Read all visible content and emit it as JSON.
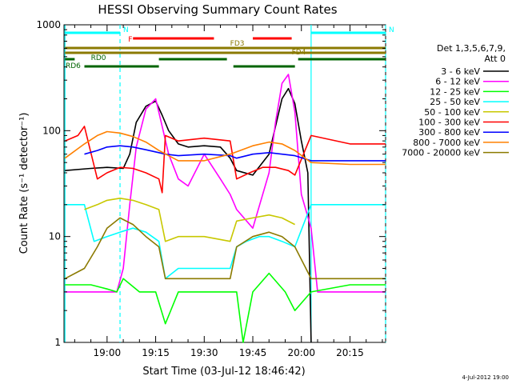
{
  "chart_data": {
    "type": "line",
    "title": "HESSI Observing Summary Count Rates",
    "xlabel": "Start Time (03-Jul-12 18:46:42)",
    "ylabel": "Count Rate (s⁻¹ detector⁻¹)",
    "yscale": "log",
    "ylim": [
      1,
      1000
    ],
    "xlim": [
      "18:46:42",
      "20:26:00"
    ],
    "x_ticks": [
      "19:00",
      "19:15",
      "19:30",
      "19:45",
      "20:00",
      "20:15"
    ],
    "y_ticks": [
      "1",
      "10",
      "100",
      "1000"
    ],
    "grid": false,
    "legend_position": "right",
    "legend_header": [
      "Det 1,3,5,6,7,9,",
      "Att 0"
    ],
    "footer_date": "4-Jul-2012 19:00",
    "series": [
      {
        "name": "3 - 6 keV",
        "color": "#000000",
        "x": [
          "18:47",
          "18:55",
          "19:00",
          "19:05",
          "19:07",
          "19:09",
          "19:12",
          "19:15",
          "19:17",
          "19:19",
          "19:22",
          "19:25",
          "19:30",
          "19:35",
          "19:38",
          "19:40",
          "19:45",
          "19:50",
          "19:52",
          "19:54",
          "19:56",
          "19:58",
          "20:00",
          "20:02",
          "20:03"
        ],
        "values": [
          42,
          44,
          45,
          44,
          60,
          120,
          170,
          190,
          140,
          100,
          75,
          70,
          72,
          70,
          55,
          42,
          38,
          60,
          110,
          200,
          250,
          180,
          80,
          40,
          1
        ]
      },
      {
        "name": "6 - 12 keV",
        "color": "#ff00ff",
        "x": [
          "18:47",
          "18:55",
          "19:00",
          "19:03",
          "19:05",
          "19:07",
          "19:09",
          "19:12",
          "19:15",
          "19:17",
          "19:19",
          "19:22",
          "19:25",
          "19:30",
          "19:35",
          "19:38",
          "19:40",
          "19:45",
          "19:50",
          "19:52",
          "19:54",
          "19:56",
          "19:58",
          "20:00",
          "20:03",
          "20:05",
          "20:15",
          "20:26"
        ],
        "values": [
          3,
          3,
          3,
          3,
          5,
          20,
          70,
          160,
          200,
          110,
          60,
          35,
          30,
          60,
          35,
          25,
          18,
          12,
          40,
          120,
          280,
          340,
          150,
          25,
          12,
          3,
          3,
          3
        ]
      },
      {
        "name": "12 - 25 keV",
        "color": "#00ff00",
        "x": [
          "18:47",
          "18:55",
          "19:00",
          "19:03",
          "19:05",
          "19:10",
          "19:15",
          "19:18",
          "19:22",
          "19:30",
          "19:40",
          "19:42",
          "19:45",
          "19:50",
          "19:55",
          "19:58",
          "20:03",
          "20:15",
          "20:26"
        ],
        "values": [
          3.5,
          3.5,
          3.2,
          3,
          4,
          3,
          3,
          1.5,
          3,
          3,
          3,
          1,
          3,
          4.5,
          3,
          2,
          3,
          3.5,
          3.5
        ]
      },
      {
        "name": "25 - 50 keV",
        "color": "#00ffff",
        "x": [
          "18:47",
          "18:53",
          "18:56",
          "19:00",
          "19:04",
          "19:08",
          "19:12",
          "19:16",
          "19:18",
          "19:22",
          "19:30",
          "19:38",
          "19:40",
          "19:43",
          "19:47",
          "19:50",
          "19:54",
          "19:58",
          "20:03",
          "20:15",
          "20:26"
        ],
        "values": [
          20,
          20,
          9,
          10,
          11,
          12,
          11,
          9,
          4,
          5,
          5,
          5,
          8,
          9,
          10,
          10,
          9,
          8,
          20,
          20,
          20
        ]
      },
      {
        "name": "50 - 100 keV",
        "color": "#c8c800",
        "x": [
          "18:53",
          "18:57",
          "19:00",
          "19:04",
          "19:08",
          "19:12",
          "19:16",
          "19:18",
          "19:22",
          "19:30",
          "19:38",
          "19:40",
          "19:45",
          "19:50",
          "19:54",
          "19:58"
        ],
        "values": [
          18,
          20,
          22,
          23,
          22,
          20,
          18,
          9,
          10,
          10,
          9,
          14,
          15,
          16,
          15,
          13
        ]
      },
      {
        "name": "100 - 300 keV",
        "color": "#ff0000",
        "x": [
          "18:47",
          "18:51",
          "18:53",
          "18:57",
          "19:00",
          "19:04",
          "19:08",
          "19:12",
          "19:16",
          "19:17",
          "19:18",
          "19:22",
          "19:30",
          "19:38",
          "19:40",
          "19:44",
          "19:48",
          "19:52",
          "19:56",
          "19:58",
          "20:03",
          "20:15",
          "20:26"
        ],
        "values": [
          80,
          90,
          110,
          35,
          40,
          45,
          44,
          40,
          35,
          26,
          90,
          80,
          85,
          80,
          35,
          40,
          45,
          45,
          42,
          38,
          90,
          75,
          75
        ]
      },
      {
        "name": "300 - 800 keV",
        "color": "#0000ff",
        "x": [
          "18:53",
          "18:57",
          "19:00",
          "19:04",
          "19:08",
          "19:12",
          "19:16",
          "19:18",
          "19:22",
          "19:30",
          "19:38",
          "19:40",
          "19:45",
          "19:50",
          "19:54",
          "19:58",
          "20:03",
          "20:15",
          "20:26"
        ],
        "values": [
          60,
          65,
          70,
          72,
          70,
          66,
          62,
          60,
          58,
          60,
          58,
          55,
          60,
          62,
          60,
          58,
          52,
          52,
          52
        ]
      },
      {
        "name": "800 - 7000 keV",
        "color": "#ff8000",
        "x": [
          "18:47",
          "18:53",
          "18:57",
          "19:00",
          "19:04",
          "19:08",
          "19:12",
          "19:16",
          "19:22",
          "19:30",
          "19:38",
          "19:45",
          "19:50",
          "19:54",
          "19:58",
          "20:03",
          "20:15",
          "20:26"
        ],
        "values": [
          55,
          75,
          90,
          98,
          95,
          88,
          78,
          65,
          52,
          52,
          60,
          72,
          78,
          75,
          65,
          50,
          48,
          48
        ]
      },
      {
        "name": "7000 - 20000 keV",
        "color": "#8b7a00",
        "x": [
          "18:47",
          "18:53",
          "18:57",
          "19:00",
          "19:04",
          "19:08",
          "19:12",
          "19:16",
          "19:18",
          "19:22",
          "19:30",
          "19:38",
          "19:40",
          "19:45",
          "19:50",
          "19:54",
          "19:58",
          "20:03",
          "20:15",
          "20:26"
        ],
        "values": [
          4,
          5,
          8,
          12,
          15,
          13,
          10,
          8,
          4,
          4,
          4,
          4,
          8,
          10,
          11,
          10,
          8,
          4,
          4,
          4
        ]
      }
    ],
    "annotations": [
      {
        "label": "N",
        "color": "#00ffff",
        "start": "18:47",
        "end": "19:04"
      },
      {
        "label": "N",
        "color": "#00ffff",
        "start": "20:03",
        "end": "20:26"
      },
      {
        "label": "F",
        "color": "#ff0000",
        "start": "19:08",
        "end": "19:33"
      },
      {
        "label": "",
        "color": "#ff0000",
        "start": "19:45",
        "end": "19:57"
      },
      {
        "label": "FD3",
        "color": "#8b7a00",
        "start": "18:47",
        "end": "20:26"
      },
      {
        "label": "FD4",
        "color": "#8b7a00",
        "start": "18:47",
        "end": "20:26"
      },
      {
        "label": "RD0",
        "color": "#006400",
        "start": "18:47",
        "end": "18:50"
      },
      {
        "label": "",
        "color": "#006400",
        "start": "19:16",
        "end": "19:37"
      },
      {
        "label": "",
        "color": "#006400",
        "start": "19:59",
        "end": "20:26"
      },
      {
        "label": "RD6",
        "color": "#006400",
        "start": "18:53",
        "end": "19:16"
      },
      {
        "label": "",
        "color": "#006400",
        "start": "19:39",
        "end": "19:58"
      }
    ]
  }
}
